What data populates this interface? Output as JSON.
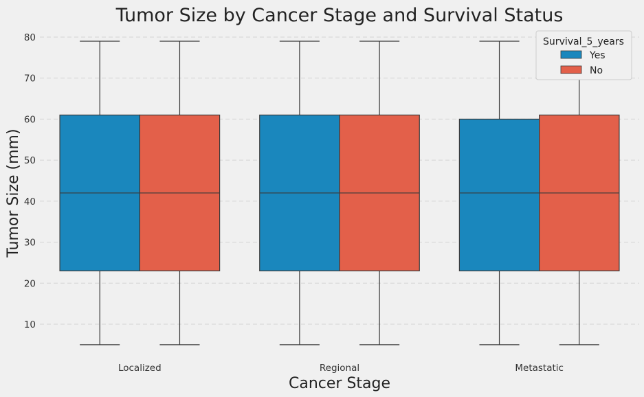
{
  "chart_data": {
    "type": "box",
    "title": "Tumor Size by Cancer Stage and Survival Status",
    "xlabel": "Cancer Stage",
    "ylabel": "Tumor Size (mm)",
    "categories": [
      "Localized",
      "Regional",
      "Metastatic"
    ],
    "ylim": [
      3,
      82
    ],
    "yticks": [
      10,
      20,
      30,
      40,
      50,
      60,
      70,
      80
    ],
    "grid": true,
    "legend": {
      "title": "Survival_5_years",
      "position": "top-right"
    },
    "series": [
      {
        "name": "Yes",
        "color": "#1a87bd",
        "boxes": [
          {
            "min": 5,
            "q1": 23,
            "median": 42,
            "q3": 61,
            "max": 79
          },
          {
            "min": 5,
            "q1": 23,
            "median": 42,
            "q3": 61,
            "max": 79
          },
          {
            "min": 5,
            "q1": 23,
            "median": 42,
            "q3": 60,
            "max": 79
          }
        ]
      },
      {
        "name": "No",
        "color": "#e3604a",
        "boxes": [
          {
            "min": 5,
            "q1": 23,
            "median": 42,
            "q3": 61,
            "max": 79
          },
          {
            "min": 5,
            "q1": 23,
            "median": 42,
            "q3": 61,
            "max": 79
          },
          {
            "min": 5,
            "q1": 23,
            "median": 42,
            "q3": 61,
            "max": 79
          }
        ]
      }
    ]
  }
}
